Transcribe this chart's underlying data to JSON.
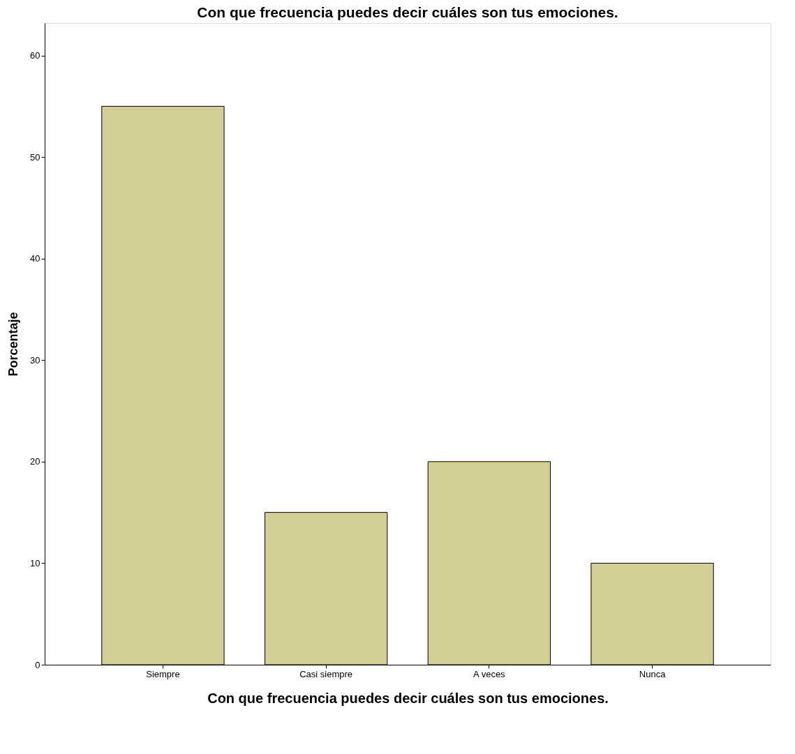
{
  "chart_data": {
    "type": "bar",
    "title": "Con que frecuencia puedes decir cuáles son tus emociones.",
    "xlabel": "Con que frecuencia puedes decir cuáles son tus emociones.",
    "ylabel": "Porcentaje",
    "categories": [
      "Siempre",
      "Casi siempre",
      "A veces",
      "Nunca"
    ],
    "values": [
      55,
      15,
      20,
      10
    ],
    "color": "#d3cf97",
    "ylim": [
      0,
      63.2
    ],
    "yticks": [
      0,
      10,
      20,
      30,
      40,
      50,
      60
    ],
    "grid": false
  }
}
